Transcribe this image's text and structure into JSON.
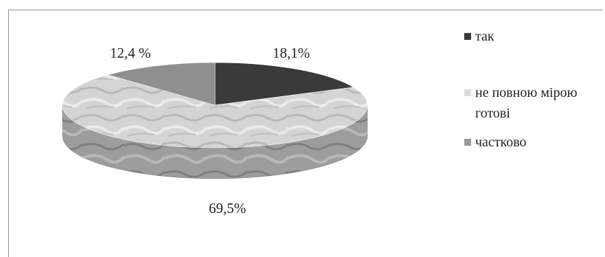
{
  "chart_data": {
    "type": "pie",
    "style": "3d",
    "slices": [
      {
        "label": "так",
        "value": 18.1,
        "display": "18,1%",
        "color": "#3b3b3b"
      },
      {
        "label": "не повною мірою готові",
        "value": 69.5,
        "display": "69,5%",
        "color": "#d2d2d2"
      },
      {
        "label": "частково",
        "value": 12.4,
        "display": "12,4 %",
        "color": "#8f8f8f"
      }
    ],
    "legend_position": "right"
  },
  "legend": {
    "items": [
      {
        "label": "так",
        "color": "#3b3b3b"
      },
      {
        "label": "не повною мірою готові",
        "color": "#dcdcdc"
      },
      {
        "label": "частково",
        "color": "#999999"
      }
    ]
  }
}
